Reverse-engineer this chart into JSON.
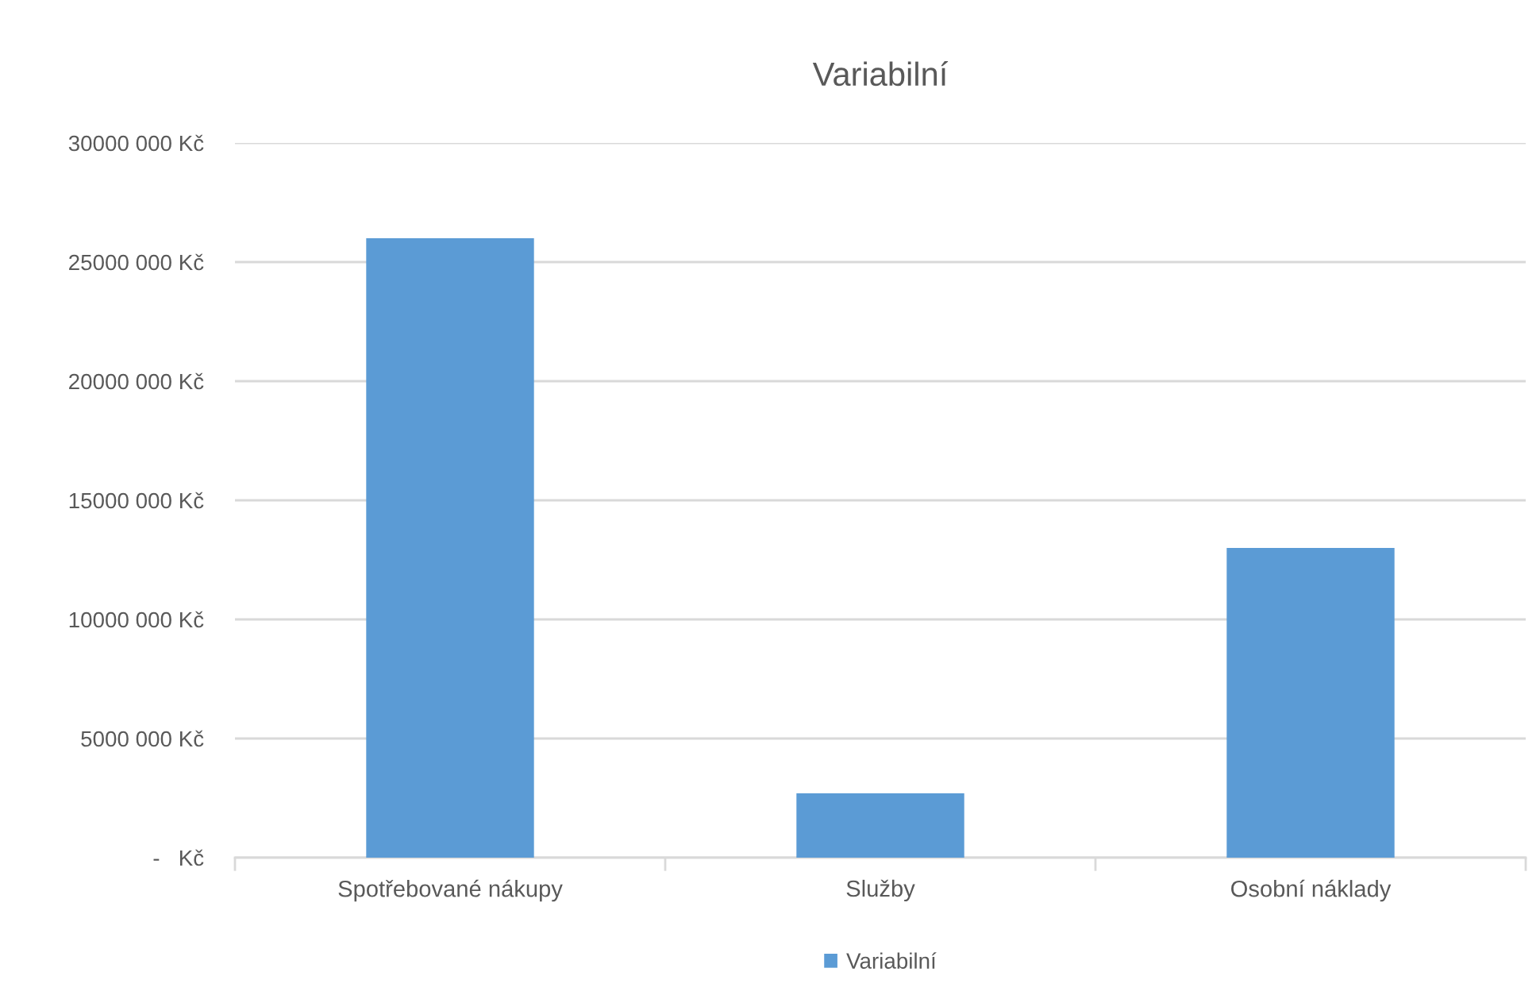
{
  "chart_data": {
    "type": "bar",
    "title": "Variabilní",
    "categories": [
      "Spotřebované nákupy",
      "Služby",
      "Osobní náklady"
    ],
    "series": [
      {
        "name": "Variabilní",
        "color": "#5b9bd5",
        "values": [
          26000000,
          2700000,
          13000000
        ]
      }
    ],
    "ylim": [
      0,
      30000000
    ],
    "yticks": [
      {
        "value": 0,
        "label": "-   Kč"
      },
      {
        "value": 5000000,
        "label": "5000 000 Kč"
      },
      {
        "value": 10000000,
        "label": "10000 000 Kč"
      },
      {
        "value": 15000000,
        "label": "15000 000 Kč"
      },
      {
        "value": 20000000,
        "label": "20000 000 Kč"
      },
      {
        "value": 25000000,
        "label": "25000 000 Kč"
      },
      {
        "value": 30000000,
        "label": "30000 000 Kč"
      }
    ],
    "grid": "y",
    "legend": "bottom"
  }
}
